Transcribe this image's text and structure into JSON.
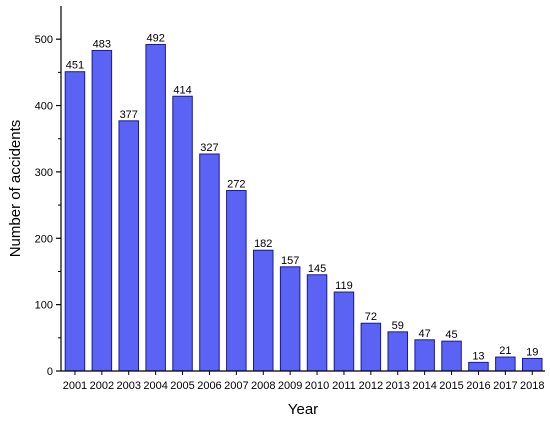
{
  "chart_data": {
    "type": "bar",
    "title": "",
    "xlabel": "Year",
    "ylabel": "Number of accidents",
    "ylim": [
      0,
      550
    ],
    "yticks": [
      0,
      100,
      200,
      300,
      400,
      500
    ],
    "grid": false,
    "legend": "none",
    "bar_color": "#5B63F5",
    "bar_edge_color": "#1A1A99",
    "categories": [
      "2001",
      "2002",
      "2003",
      "2004",
      "2005",
      "2006",
      "2007",
      "2008",
      "2009",
      "2010",
      "2011",
      "2012",
      "2013",
      "2014",
      "2015",
      "2016",
      "2017",
      "2018"
    ],
    "values": [
      451,
      483,
      377,
      492,
      414,
      327,
      272,
      182,
      157,
      145,
      119,
      72,
      59,
      47,
      45,
      13,
      21,
      19
    ]
  }
}
